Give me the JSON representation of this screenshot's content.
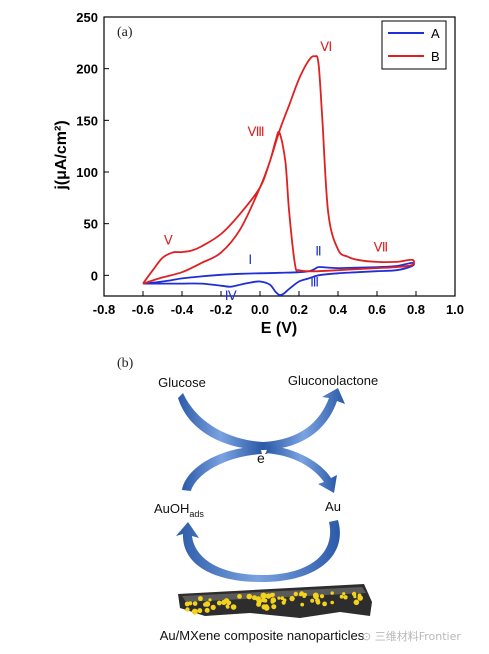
{
  "panel_a_label": "(a)",
  "panel_b_label": "(b)",
  "colors": {
    "A": "#1f2fd6",
    "B": "#e02020",
    "arrow": "#4a7fd4"
  },
  "chart_data": {
    "type": "line",
    "xlabel": "E (V)",
    "ylabel": "j(μA/cm²)",
    "xlim": [
      -0.8,
      1.0
    ],
    "ylim": [
      -20,
      250
    ],
    "xticks": [
      "-0.8",
      "-0.6",
      "-0.4",
      "-0.2",
      "0.0",
      "0.2",
      "0.4",
      "0.6",
      "0.8",
      "1.0"
    ],
    "yticks": [
      "0",
      "50",
      "100",
      "150",
      "200",
      "250"
    ],
    "legend_position": "top-right",
    "series": [
      {
        "name": "A",
        "x": [
          -0.6,
          -0.5,
          -0.4,
          -0.3,
          -0.2,
          -0.1,
          0.0,
          0.1,
          0.2,
          0.25,
          0.28,
          0.3,
          0.35,
          0.4,
          0.5,
          0.6,
          0.7,
          0.78,
          0.78,
          0.7,
          0.6,
          0.5,
          0.4,
          0.3,
          0.25,
          0.2,
          0.15,
          0.12,
          0.1,
          0.08,
          0.05,
          0.0,
          -0.05,
          -0.1,
          -0.15,
          -0.2,
          -0.3,
          -0.4,
          -0.5,
          -0.6
        ],
        "y": [
          -8,
          -6,
          -3,
          -1,
          0.5,
          1.5,
          2,
          2.5,
          3,
          4,
          6,
          8,
          7.5,
          7,
          7.5,
          8,
          9,
          12,
          9,
          5,
          4,
          3,
          2,
          0,
          -3,
          -6,
          -13,
          -18,
          -19,
          -16,
          -9,
          -6,
          -7,
          -9,
          -11,
          -10,
          -8,
          -8,
          -8,
          -8
        ]
      },
      {
        "name": "B",
        "x": [
          -0.6,
          -0.55,
          -0.5,
          -0.45,
          -0.42,
          -0.4,
          -0.35,
          -0.3,
          -0.2,
          -0.1,
          0.0,
          0.05,
          0.1,
          0.15,
          0.2,
          0.25,
          0.28,
          0.3,
          0.32,
          0.35,
          0.4,
          0.45,
          0.5,
          0.6,
          0.7,
          0.78,
          0.78,
          0.7,
          0.6,
          0.5,
          0.4,
          0.3,
          0.25,
          0.2,
          0.18,
          0.15,
          0.13,
          0.1,
          0.08,
          0.05,
          0.0,
          -0.1,
          -0.2,
          -0.3,
          -0.4,
          -0.5,
          -0.6
        ],
        "y": [
          -8,
          5,
          17,
          22,
          22.5,
          22.5,
          24,
          28,
          40,
          60,
          85,
          110,
          140,
          165,
          190,
          208,
          212,
          205,
          150,
          60,
          25,
          18,
          15,
          13,
          13,
          15,
          10,
          8,
          7,
          6,
          5,
          4,
          4,
          5,
          10,
          60,
          110,
          138,
          130,
          110,
          85,
          45,
          22,
          12,
          3,
          -2,
          -8
        ]
      }
    ],
    "peak_labels": [
      {
        "text": "Ⅰ",
        "series": "A",
        "x": -0.05,
        "y": 11
      },
      {
        "text": "Ⅱ",
        "series": "A",
        "x": 0.3,
        "y": 19
      },
      {
        "text": "Ⅲ",
        "series": "A",
        "x": 0.28,
        "y": -11
      },
      {
        "text": "Ⅳ",
        "series": "A",
        "x": -0.15,
        "y": -24
      },
      {
        "text": "Ⅴ",
        "series": "B",
        "x": -0.47,
        "y": 30
      },
      {
        "text": "Ⅵ",
        "series": "B",
        "x": 0.34,
        "y": 217
      },
      {
        "text": "Ⅶ",
        "series": "B",
        "x": 0.62,
        "y": 23
      },
      {
        "text": "Ⅷ",
        "series": "B",
        "x": -0.02,
        "y": 135
      }
    ]
  },
  "mechanism": {
    "glucose": "Glucose",
    "gluconolactone": "Gluconolactone",
    "electron": "e",
    "electron_sup": "-",
    "au": "Au",
    "auoh": "AuOH",
    "auoh_sub": "ads",
    "composite_caption": "Au/MXene composite nanoparticles"
  },
  "watermark": "⊙ 三维材料Frontier"
}
